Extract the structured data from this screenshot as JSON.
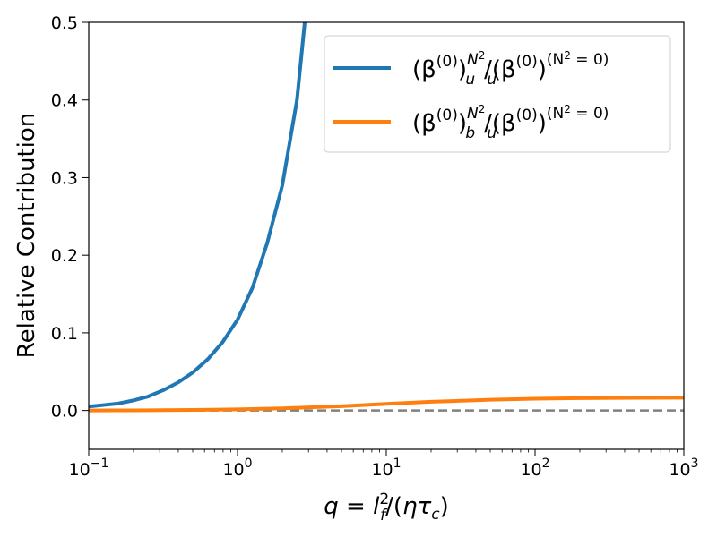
{
  "chart_data": {
    "type": "line",
    "title": "",
    "xlabel": "q = l_f^2/(ητ_c)",
    "ylabel": "Relative Contribution",
    "xscale": "log",
    "xlim": [
      0.1,
      1000
    ],
    "ylim": [
      -0.05,
      0.5
    ],
    "grid": false,
    "legend_position": "top-right",
    "x_ticks": [
      {
        "value": 0.1,
        "base": "10",
        "exp": "−1"
      },
      {
        "value": 1,
        "base": "10",
        "exp": "0"
      },
      {
        "value": 10,
        "base": "10",
        "exp": "1"
      },
      {
        "value": 100,
        "base": "10",
        "exp": "2"
      },
      {
        "value": 1000,
        "base": "10",
        "exp": "3"
      }
    ],
    "y_ticks": [
      {
        "value": 0.0,
        "label": "0.0"
      },
      {
        "value": 0.1,
        "label": "0.1"
      },
      {
        "value": 0.2,
        "label": "0.2"
      },
      {
        "value": 0.3,
        "label": "0.3"
      },
      {
        "value": 0.4,
        "label": "0.4"
      },
      {
        "value": 0.5,
        "label": "0.5"
      }
    ],
    "reference_line": {
      "y": 0.0,
      "style": "dashed",
      "color": "#808080"
    },
    "series": [
      {
        "name": "(β^(0))_u^(N^2)/(β^(0))_u^(N^2=0)",
        "color": "#1f77b4",
        "x": [
          0.1,
          0.126,
          0.158,
          0.2,
          0.251,
          0.316,
          0.398,
          0.501,
          0.631,
          0.794,
          1.0,
          1.26,
          1.58,
          2.0,
          2.51,
          2.83
        ],
        "y": [
          0.005,
          0.007,
          0.009,
          0.013,
          0.018,
          0.026,
          0.036,
          0.049,
          0.066,
          0.088,
          0.117,
          0.158,
          0.215,
          0.29,
          0.4,
          0.5
        ]
      },
      {
        "name": "(β^(0))_b^(N^2)/(β^(0))_u^(N^2=0)",
        "color": "#ff7f0e",
        "x": [
          0.1,
          0.2,
          0.5,
          1,
          2,
          5,
          10,
          20,
          50,
          100,
          200,
          500,
          1000
        ],
        "y": [
          0.0,
          0.0002,
          0.0008,
          0.0015,
          0.0028,
          0.0055,
          0.0085,
          0.0112,
          0.0138,
          0.0152,
          0.0159,
          0.0163,
          0.0164
        ]
      }
    ]
  },
  "legend": {
    "entries": [
      {
        "base": "(β",
        "sup1": "(0)",
        "rp": ")",
        "sub": "u",
        "sup2": "N",
        "sup2b": "2",
        "slash": "/(β",
        "sup3": "(0)",
        "rp2": ")",
        "sub2": "u",
        "sup4": "(N",
        "sup4b": "2",
        "sup4c": " = 0)"
      },
      {
        "base": "(β",
        "sup1": "(0)",
        "rp": ")",
        "sub": "b",
        "sup2": "N",
        "sup2b": "2",
        "slash": "/(β",
        "sup3": "(0)",
        "rp2": ")",
        "sub2": "u",
        "sup4": "(N",
        "sup4b": "2",
        "sup4c": " = 0)"
      }
    ]
  },
  "axis_titles": {
    "y": "Relative Contribution",
    "x_q": "q",
    "x_eq": " = ",
    "x_l": "l",
    "x_l_sub": "f",
    "x_l_sup": "2",
    "x_mid": "/(",
    "x_eta": "η",
    "x_tau": "τ",
    "x_tau_sub": "c",
    "x_end": ")"
  }
}
